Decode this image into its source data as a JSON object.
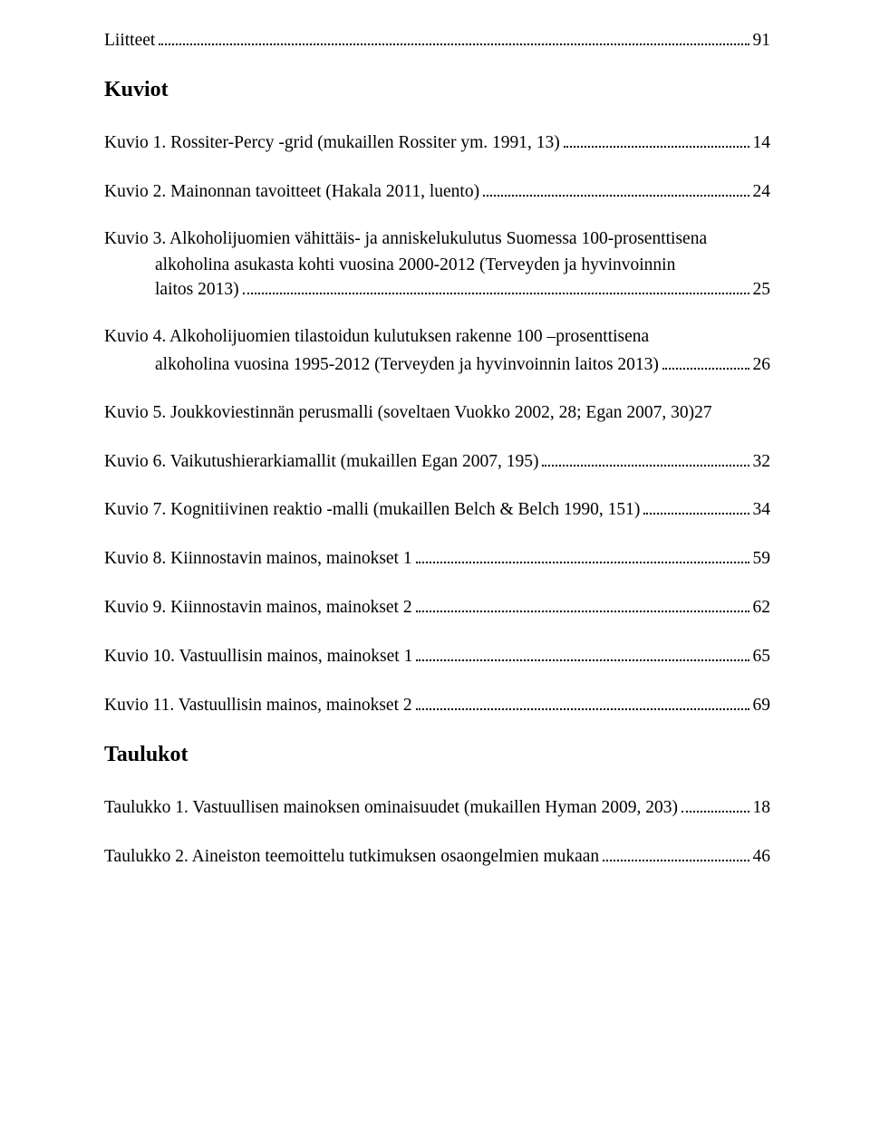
{
  "section_liitteet": {
    "label": "Liitteet",
    "page": "91"
  },
  "heading_kuviot": "Kuviot",
  "kuvio1": {
    "text": "Kuvio 1. Rossiter-Percy -grid (mukaillen Rossiter ym. 1991, 13)",
    "page": "14"
  },
  "kuvio2": {
    "text": "Kuvio 2. Mainonnan tavoitteet (Hakala 2011, luento)",
    "page": "24"
  },
  "kuvio3": {
    "line1": "Kuvio 3. Alkoholijuomien vähittäis- ja anniskelukulutus Suomessa 100-prosenttisena",
    "line2": "alkoholina asukasta kohti vuosina 2000-2012 (Terveyden ja hyvinvoinnin",
    "line3": "laitos 2013)",
    "page": "25"
  },
  "kuvio4": {
    "line1": "Kuvio 4. Alkoholijuomien tilastoidun kulutuksen rakenne 100 –prosenttisena",
    "line2": "alkoholina vuosina 1995-2012 (Terveyden ja hyvinvoinnin laitos 2013)",
    "page": "26"
  },
  "kuvio5": {
    "text": "Kuvio 5. Joukkoviestinnän perusmalli (soveltaen Vuokko 2002, 28; Egan 2007, 30)27"
  },
  "kuvio6": {
    "text": "Kuvio 6. Vaikutushierarkiamallit (mukaillen Egan 2007, 195)",
    "page": "32"
  },
  "kuvio7": {
    "text": "Kuvio 7. Kognitiivinen reaktio -malli (mukaillen Belch & Belch 1990, 151)",
    "page": "34"
  },
  "kuvio8": {
    "text": "Kuvio 8. Kiinnostavin mainos, mainokset 1",
    "page": "59"
  },
  "kuvio9": {
    "text": "Kuvio 9. Kiinnostavin mainos, mainokset 2",
    "page": "62"
  },
  "kuvio10": {
    "text": "Kuvio 10. Vastuullisin mainos, mainokset 1",
    "page": "65"
  },
  "kuvio11": {
    "text": "Kuvio 11. Vastuullisin mainos, mainokset 2",
    "page": "69"
  },
  "heading_taulukot": "Taulukot",
  "taulukko1": {
    "text": "Taulukko 1. Vastuullisen mainoksen ominaisuudet (mukaillen Hyman 2009, 203)",
    "page": "18"
  },
  "taulukko2": {
    "text": "Taulukko 2. Aineiston teemoittelu tutkimuksen osaongelmien mukaan",
    "page": "46"
  }
}
